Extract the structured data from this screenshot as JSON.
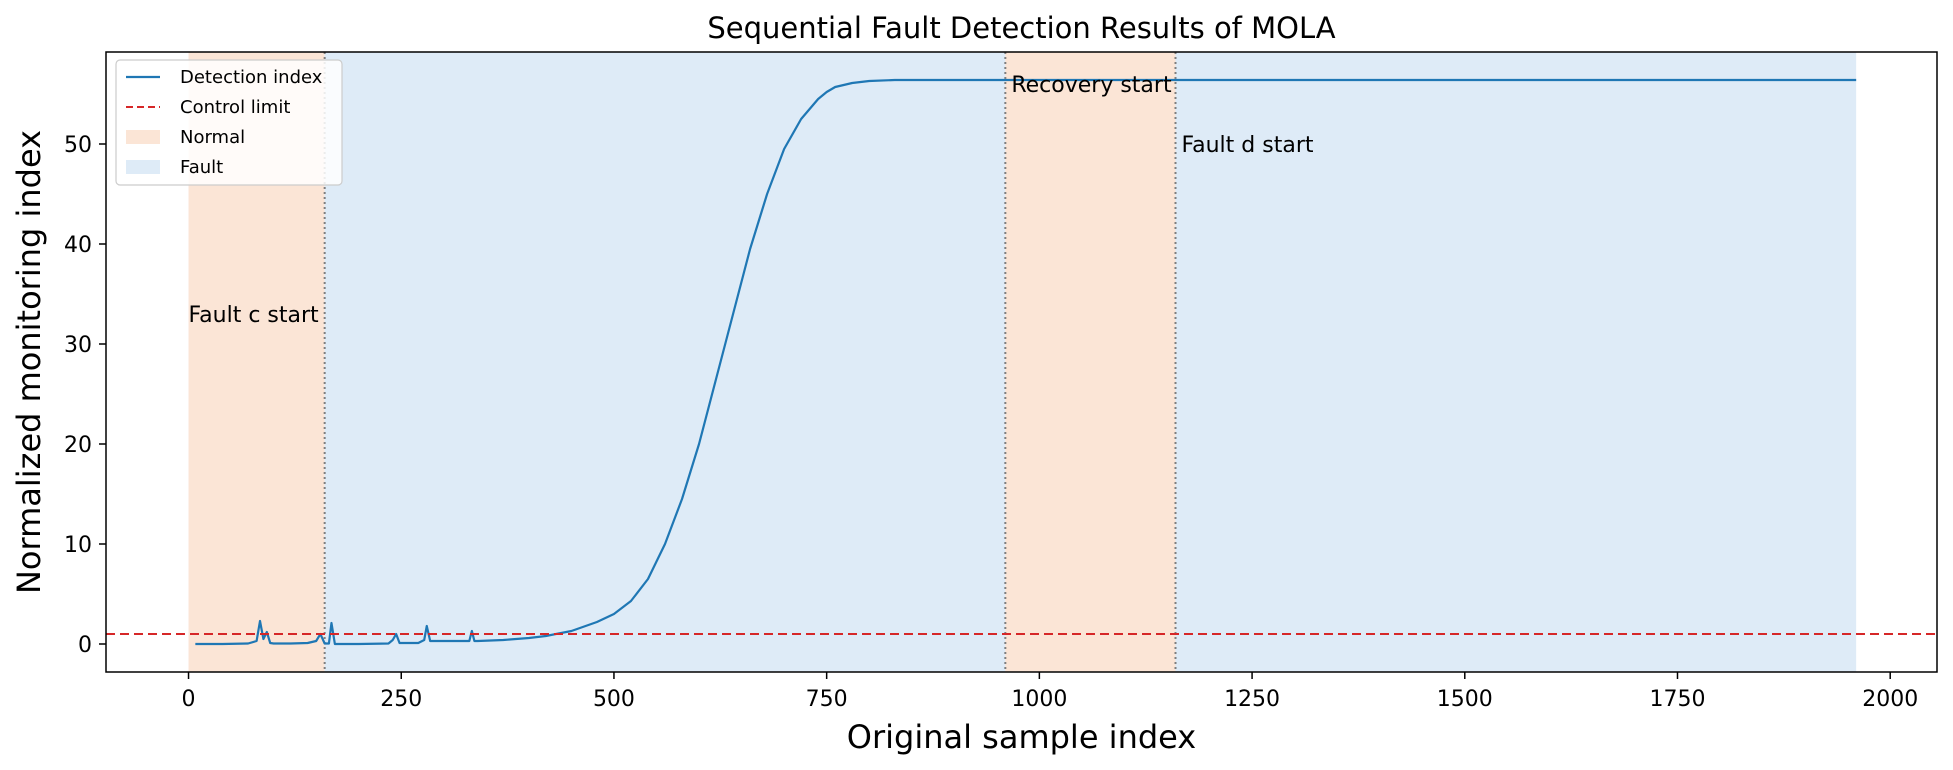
{
  "chart_data": {
    "type": "line",
    "title": "Sequential Fault Detection Results of MOLA",
    "xlabel": "Original sample index",
    "ylabel": "Normalized monitoring index",
    "xlim": [
      -97,
      2055
    ],
    "ylim": [
      -2.8,
      59.2
    ],
    "xticks": [
      0,
      250,
      500,
      750,
      1000,
      1250,
      1500,
      1750,
      2000
    ],
    "yticks": [
      0,
      10,
      20,
      30,
      40,
      50
    ],
    "grid": false,
    "legend_position": "top-left",
    "legend": [
      {
        "label": "Detection index",
        "kind": "line",
        "color": "#1f77b4"
      },
      {
        "label": "Control limit",
        "kind": "dashed",
        "color": "#d62728"
      },
      {
        "label": "Normal",
        "kind": "patch",
        "color": "#fbe5d6"
      },
      {
        "label": "Fault",
        "kind": "patch",
        "color": "#deebf7"
      }
    ],
    "control_limit": 1.0,
    "regions": [
      {
        "label": "Normal",
        "x_start": 0,
        "x_end": 160,
        "color": "#fbe5d6"
      },
      {
        "label": "Fault",
        "x_start": 160,
        "x_end": 960,
        "color": "#deebf7"
      },
      {
        "label": "Normal",
        "x_start": 960,
        "x_end": 1160,
        "color": "#fbe5d6"
      },
      {
        "label": "Fault",
        "x_start": 1160,
        "x_end": 1960,
        "color": "#deebf7"
      }
    ],
    "boundaries": [
      160,
      960,
      1160
    ],
    "annotations": [
      {
        "text": "Fault c start",
        "x": 160,
        "y": 33,
        "align": "end"
      },
      {
        "text": "Recovery start",
        "x": 960,
        "y": 56,
        "align": "start"
      },
      {
        "text": "Fault d start",
        "x": 1160,
        "y": 50,
        "align": "start"
      }
    ],
    "series": [
      {
        "name": "Detection index",
        "color": "#1f77b4",
        "x": [
          8,
          40,
          70,
          80,
          84,
          88,
          92,
          96,
          100,
          120,
          140,
          150,
          155,
          160,
          165,
          168,
          172,
          200,
          235,
          240,
          244,
          248,
          270,
          277,
          280,
          284,
          300,
          330,
          333,
          336,
          340,
          370,
          400,
          420,
          450,
          480,
          500,
          520,
          540,
          560,
          580,
          600,
          620,
          640,
          660,
          680,
          700,
          720,
          740,
          750,
          760,
          780,
          800,
          830,
          860,
          900,
          1000,
          1100,
          1200,
          1400,
          1600,
          1800,
          1960
        ],
        "y": [
          0.0,
          0.0,
          0.05,
          0.3,
          2.3,
          0.5,
          1.2,
          0.1,
          0.05,
          0.05,
          0.1,
          0.3,
          1.0,
          0.05,
          0.05,
          2.1,
          0.0,
          0.0,
          0.05,
          0.4,
          1.0,
          0.1,
          0.1,
          0.4,
          1.8,
          0.3,
          0.3,
          0.3,
          1.3,
          0.3,
          0.3,
          0.4,
          0.6,
          0.8,
          1.3,
          2.2,
          3.0,
          4.3,
          6.5,
          10.0,
          14.5,
          20.0,
          26.5,
          33.0,
          39.5,
          45.0,
          49.5,
          52.5,
          54.5,
          55.2,
          55.7,
          56.1,
          56.3,
          56.4,
          56.4,
          56.4,
          56.4,
          56.4,
          56.4,
          56.4,
          56.4,
          56.4,
          56.4
        ]
      }
    ]
  }
}
